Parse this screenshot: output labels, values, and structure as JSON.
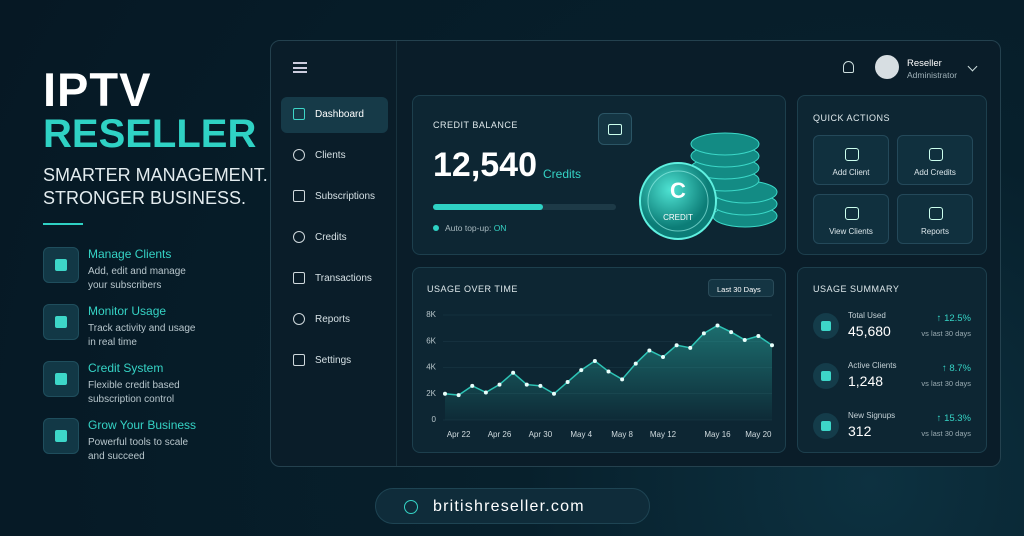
{
  "hero": {
    "title": "IPTV",
    "subtitle": "RESELLER",
    "tagline": [
      "SMARTER MANAGEMENT.",
      "STRONGER BUSINESS."
    ]
  },
  "features": [
    {
      "title": "Manage Clients",
      "description": "Add, edit and manage your subscribers"
    },
    {
      "title": "Monitor Usage",
      "description": "Track activity and usage in real time"
    },
    {
      "title": "Credit System",
      "description": "Flexible credit based subscription control"
    },
    {
      "title": "Grow Your Business",
      "description": "Powerful tools to scale and succeed"
    }
  ],
  "sidebar": {
    "items": [
      "Dashboard",
      "Clients",
      "Subscriptions",
      "Credits",
      "Transactions",
      "Reports",
      "Settings"
    ]
  },
  "user": {
    "name": "Reseller",
    "role": "Administrator"
  },
  "credit_balance": {
    "title": "CREDIT BALANCE",
    "amount": "12,540",
    "unit": "Credits",
    "progress": 60,
    "auto_topup_label": "Auto top-up:",
    "auto_topup_status": "ON",
    "coin_letter": "C",
    "coin_label": "CREDIT"
  },
  "quick_actions": {
    "title": "QUICK ACTIONS",
    "items": [
      "Add Client",
      "Add Credits",
      "View Clients",
      "Reports"
    ]
  },
  "chart_data": {
    "type": "line",
    "title": "USAGE OVER TIME",
    "range_selector": "Last 30 Days",
    "color": "#2ec4b6",
    "categories": [
      null,
      "Apr 22",
      null,
      null,
      "Apr 26",
      null,
      null,
      "Apr 30",
      null,
      null,
      "May 4",
      null,
      null,
      "May 8",
      null,
      null,
      "May 12",
      null,
      null,
      null,
      "May 16",
      null,
      null,
      "May 20",
      null
    ],
    "values": [
      2000,
      1900,
      2600,
      2100,
      2700,
      3600,
      2700,
      2600,
      2000,
      2900,
      3800,
      4500,
      3700,
      3100,
      4300,
      5300,
      4800,
      5700,
      5500,
      6600,
      7200,
      6700,
      6100,
      6400,
      5700
    ],
    "ylim": [
      0,
      8000
    ],
    "yticks": [
      0,
      {
        "value": 2000,
        "label": "2K"
      },
      {
        "value": 4000,
        "label": "4K"
      },
      {
        "value": 6000,
        "label": "6K"
      },
      {
        "value": 8000,
        "label": "8K"
      }
    ],
    "grid": true
  },
  "usage_summary": {
    "title": "USAGE SUMMARY",
    "items": [
      {
        "label": "Total Used",
        "value": "45,680",
        "change": "12.5%",
        "period": "vs last 30 days"
      },
      {
        "label": "Active Clients",
        "value": "1,248",
        "change": "8.7%",
        "period": "vs last 30 days"
      },
      {
        "label": "New Signups",
        "value": "312",
        "change": "15.3%",
        "period": "vs last 30 days"
      }
    ]
  },
  "footer": {
    "url": "britishreseller.com"
  }
}
